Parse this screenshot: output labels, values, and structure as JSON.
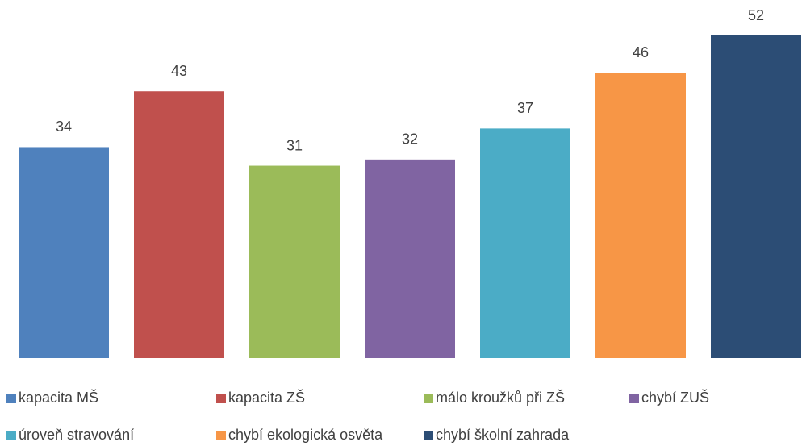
{
  "chart_data": {
    "type": "bar",
    "series": [
      {
        "name": "kapacita MŠ",
        "color": "#4f81bd",
        "values": [
          34
        ]
      },
      {
        "name": "kapacita ZŠ",
        "color": "#c0504d",
        "values": [
          43
        ]
      },
      {
        "name": "málo kroužků při ZŠ",
        "color": "#9bbb59",
        "values": [
          31
        ]
      },
      {
        "name": "chybí ZUŠ",
        "color": "#8064a2",
        "values": [
          32
        ]
      },
      {
        "name": "úroveň stravování",
        "color": "#4bacc6",
        "values": [
          37
        ]
      },
      {
        "name": "chybí ekologická osvěta",
        "color": "#f79646",
        "values": [
          46
        ]
      },
      {
        "name": "chybí školní zahrada",
        "color": "#2c4d75",
        "values": [
          52
        ]
      }
    ],
    "ylim": [
      0,
      52
    ]
  }
}
